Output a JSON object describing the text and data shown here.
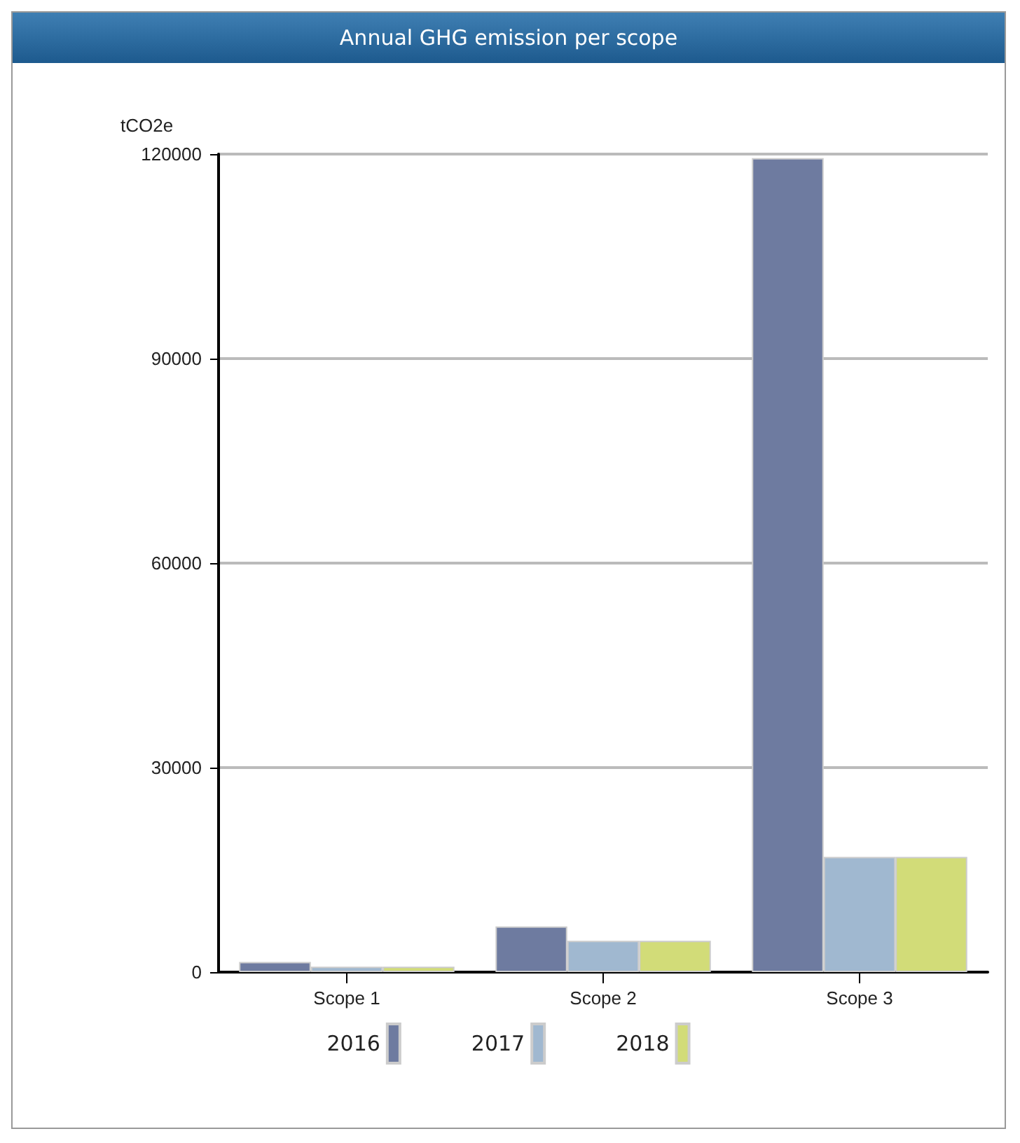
{
  "chart_data": {
    "type": "bar",
    "title": "Annual GHG emission per scope",
    "ylabel": "tCO2e",
    "categories": [
      "Scope 1",
      "Scope 2",
      "Scope 3"
    ],
    "series": [
      {
        "name": "2016",
        "color": "#6e7ba0",
        "values": [
          1500,
          6700,
          119400
        ]
      },
      {
        "name": "2017",
        "color": "#a0b8d0",
        "values": [
          800,
          4600,
          16900
        ]
      },
      {
        "name": "2018",
        "color": "#d2dc78",
        "values": [
          800,
          4600,
          16900
        ]
      }
    ],
    "ylim": [
      0,
      120000
    ],
    "yticks": [
      0,
      30000,
      60000,
      90000,
      120000
    ],
    "grid": "y",
    "legend": "bottom"
  }
}
